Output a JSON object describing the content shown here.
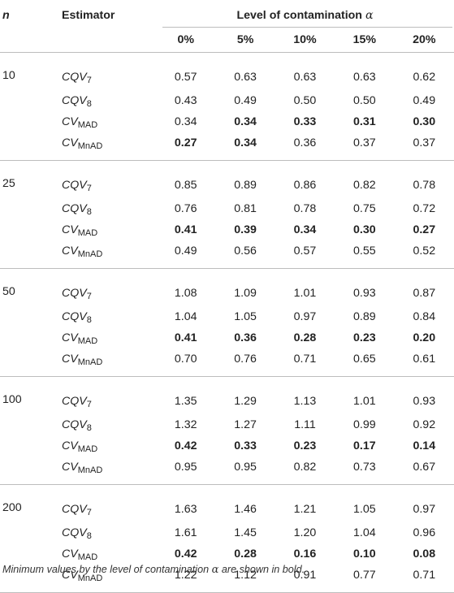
{
  "header": {
    "n_label": "n",
    "estimator_label": "Estimator",
    "level_label": "Level of contamination",
    "alpha_symbol": "α",
    "levels": [
      "0%",
      "5%",
      "10%",
      "15%",
      "20%"
    ]
  },
  "groups": [
    {
      "n": "10",
      "rows": [
        {
          "base": "CQV",
          "sub": "7",
          "values": [
            "0.57",
            "0.63",
            "0.63",
            "0.63",
            "0.62"
          ],
          "bold": [
            false,
            false,
            false,
            false,
            false
          ]
        },
        {
          "base": "CQV",
          "sub": "8",
          "values": [
            "0.43",
            "0.49",
            "0.50",
            "0.50",
            "0.49"
          ],
          "bold": [
            false,
            false,
            false,
            false,
            false
          ]
        },
        {
          "base": "CV",
          "sub": "MAD",
          "values": [
            "0.34",
            "0.34",
            "0.33",
            "0.31",
            "0.30"
          ],
          "bold": [
            false,
            true,
            true,
            true,
            true
          ]
        },
        {
          "base": "CV",
          "sub": "MnAD",
          "values": [
            "0.27",
            "0.34",
            "0.36",
            "0.37",
            "0.37"
          ],
          "bold": [
            true,
            true,
            false,
            false,
            false
          ]
        }
      ]
    },
    {
      "n": "25",
      "rows": [
        {
          "base": "CQV",
          "sub": "7",
          "values": [
            "0.85",
            "0.89",
            "0.86",
            "0.82",
            "0.78"
          ],
          "bold": [
            false,
            false,
            false,
            false,
            false
          ]
        },
        {
          "base": "CQV",
          "sub": "8",
          "values": [
            "0.76",
            "0.81",
            "0.78",
            "0.75",
            "0.72"
          ],
          "bold": [
            false,
            false,
            false,
            false,
            false
          ]
        },
        {
          "base": "CV",
          "sub": "MAD",
          "values": [
            "0.41",
            "0.39",
            "0.34",
            "0.30",
            "0.27"
          ],
          "bold": [
            true,
            true,
            true,
            true,
            true
          ]
        },
        {
          "base": "CV",
          "sub": "MnAD",
          "values": [
            "0.49",
            "0.56",
            "0.57",
            "0.55",
            "0.52"
          ],
          "bold": [
            false,
            false,
            false,
            false,
            false
          ]
        }
      ]
    },
    {
      "n": "50",
      "rows": [
        {
          "base": "CQV",
          "sub": "7",
          "values": [
            "1.08",
            "1.09",
            "1.01",
            "0.93",
            "0.87"
          ],
          "bold": [
            false,
            false,
            false,
            false,
            false
          ]
        },
        {
          "base": "CQV",
          "sub": "8",
          "values": [
            "1.04",
            "1.05",
            "0.97",
            "0.89",
            "0.84"
          ],
          "bold": [
            false,
            false,
            false,
            false,
            false
          ]
        },
        {
          "base": "CV",
          "sub": "MAD",
          "values": [
            "0.41",
            "0.36",
            "0.28",
            "0.23",
            "0.20"
          ],
          "bold": [
            true,
            true,
            true,
            true,
            true
          ]
        },
        {
          "base": "CV",
          "sub": "MnAD",
          "values": [
            "0.70",
            "0.76",
            "0.71",
            "0.65",
            "0.61"
          ],
          "bold": [
            false,
            false,
            false,
            false,
            false
          ]
        }
      ]
    },
    {
      "n": "100",
      "rows": [
        {
          "base": "CQV",
          "sub": "7",
          "values": [
            "1.35",
            "1.29",
            "1.13",
            "1.01",
            "0.93"
          ],
          "bold": [
            false,
            false,
            false,
            false,
            false
          ]
        },
        {
          "base": "CQV",
          "sub": "8",
          "values": [
            "1.32",
            "1.27",
            "1.11",
            "0.99",
            "0.92"
          ],
          "bold": [
            false,
            false,
            false,
            false,
            false
          ]
        },
        {
          "base": "CV",
          "sub": "MAD",
          "values": [
            "0.42",
            "0.33",
            "0.23",
            "0.17",
            "0.14"
          ],
          "bold": [
            true,
            true,
            true,
            true,
            true
          ]
        },
        {
          "base": "CV",
          "sub": "MnAD",
          "values": [
            "0.95",
            "0.95",
            "0.82",
            "0.73",
            "0.67"
          ],
          "bold": [
            false,
            false,
            false,
            false,
            false
          ]
        }
      ]
    },
    {
      "n": "200",
      "rows": [
        {
          "base": "CQV",
          "sub": "7",
          "values": [
            "1.63",
            "1.46",
            "1.21",
            "1.05",
            "0.97"
          ],
          "bold": [
            false,
            false,
            false,
            false,
            false
          ]
        },
        {
          "base": "CQV",
          "sub": "8",
          "values": [
            "1.61",
            "1.45",
            "1.20",
            "1.04",
            "0.96"
          ],
          "bold": [
            false,
            false,
            false,
            false,
            false
          ]
        },
        {
          "base": "CV",
          "sub": "MAD",
          "values": [
            "0.42",
            "0.28",
            "0.16",
            "0.10",
            "0.08"
          ],
          "bold": [
            true,
            true,
            true,
            true,
            true
          ]
        },
        {
          "base": "CV",
          "sub": "MnAD",
          "values": [
            "1.22",
            "1.12",
            "0.91",
            "0.77",
            "0.71"
          ],
          "bold": [
            false,
            false,
            false,
            false,
            false
          ]
        }
      ]
    }
  ],
  "footnote": {
    "text_before": "Minimum values by the level of contamination",
    "alpha_symbol": "α",
    "text_after": "are shown in bold."
  }
}
